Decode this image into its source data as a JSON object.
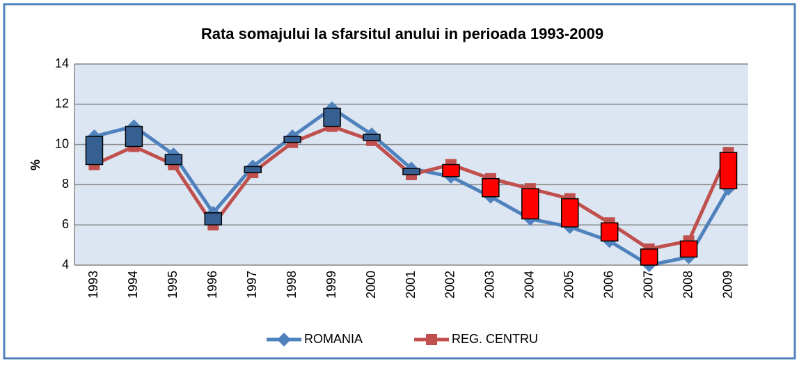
{
  "chart_data": {
    "type": "line",
    "title": "Rata somajului la sfarsitul anului in perioada 1993-2009",
    "y_label": "%",
    "categories": [
      "1993",
      "1994",
      "1995",
      "1996",
      "1997",
      "1998",
      "1999",
      "2000",
      "2001",
      "2002",
      "2003",
      "2004",
      "2005",
      "2006",
      "2007",
      "2008",
      "2009"
    ],
    "series": [
      {
        "name": "ROMANIA",
        "color": "#4f81bd",
        "marker": "diamond",
        "values": [
          10.4,
          10.9,
          9.5,
          6.6,
          8.9,
          10.4,
          11.8,
          10.5,
          8.8,
          8.4,
          7.4,
          6.3,
          5.9,
          5.2,
          4.0,
          4.4,
          7.8
        ]
      },
      {
        "name": "REG. CENTRU",
        "color": "#c0504d",
        "marker": "square",
        "values": [
          9.0,
          9.9,
          9.0,
          6.0,
          8.6,
          10.1,
          10.9,
          10.2,
          8.5,
          9.0,
          8.3,
          7.8,
          7.3,
          6.1,
          4.8,
          5.2,
          9.6
        ]
      }
    ],
    "up_bar_color": "#ff0000",
    "down_bar_color": "#366092",
    "ylim": [
      4,
      14
    ],
    "yticks": [
      4,
      6,
      8,
      10,
      12,
      14
    ],
    "grid": true,
    "legend": "bottom"
  }
}
